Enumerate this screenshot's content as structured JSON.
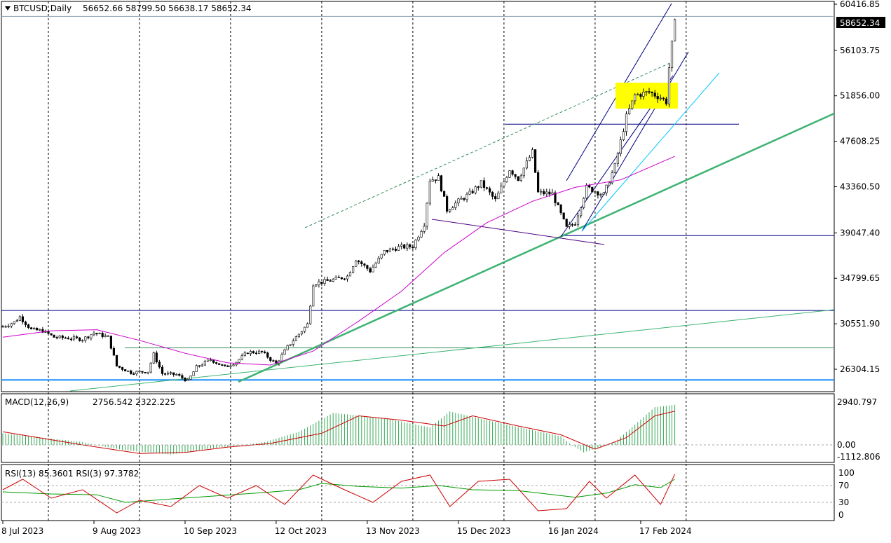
{
  "header": {
    "symbol": "BTCUSD,Daily",
    "ohlc": "56652.66 58799.50 56638.17 58652.34",
    "menu_icon": "triangle-down-icon"
  },
  "colors": {
    "bull_candle": "#ffffff",
    "bear_candle": "#000000",
    "ma": "#cc00cc",
    "trend_green": "#3cb371",
    "channel": "#000080",
    "light_trend": "#00c8ff",
    "zone": "#ffff00",
    "macd_hist": "#32a852",
    "macd_signal": "#cc0000",
    "rsi_fast": "#cc0000",
    "rsi_slow": "#009900"
  },
  "chart_data": [
    {
      "type": "candlestick",
      "title": "BTCUSD,Daily",
      "last_price": 58652.34,
      "last_price_label": "58652.34",
      "ylim": [
        24500,
        60700
      ],
      "y_ticks": [
        60416.85,
        56103.75,
        51856.0,
        47608.25,
        43360.5,
        39047.4,
        34799.65,
        30551.9,
        26304.15
      ],
      "y_tick_labels": [
        "60416.85",
        "56103.75",
        "51856.00",
        "47608.25",
        "43360.50",
        "39047.40",
        "34799.65",
        "30551.90",
        "26304.15"
      ],
      "x_tick_labels": [
        "8 Jul 2023",
        "9 Aug 2023",
        "10 Sep 2023",
        "12 Oct 2023",
        "13 Nov 2023",
        "15 Dec 2023",
        "16 Jan 2024",
        "17 Feb 2024"
      ],
      "x_tick_dates": [
        "2023-07-08",
        "2023-08-09",
        "2023-09-10",
        "2023-10-12",
        "2023-11-13",
        "2023-12-15",
        "2024-01-16",
        "2024-02-17"
      ],
      "x_range": [
        "2023-07-08",
        "2024-04-24"
      ],
      "vertical_grid_dates": [
        "2023-07-24",
        "2023-08-25",
        "2023-09-26",
        "2023-10-28",
        "2023-11-29",
        "2023-12-31",
        "2024-02-01",
        "2024-03-04"
      ],
      "horizontal_levels": [
        {
          "price": 59280,
          "color": "#8ca0b4"
        },
        {
          "price": 31800,
          "color": "#00008b"
        },
        {
          "price": 28300,
          "color": "#2e8b57"
        },
        {
          "price": 25300,
          "color": "#1e90ff"
        },
        {
          "price": 38800,
          "color": "#000080"
        },
        {
          "price": 49200,
          "color": "#000080"
        }
      ],
      "price_path": [
        [
          "2023-07-08",
          30300
        ],
        [
          "2023-07-12",
          30700
        ],
        [
          "2023-07-14",
          31200
        ],
        [
          "2023-07-18",
          30000
        ],
        [
          "2023-07-22",
          29900
        ],
        [
          "2023-07-26",
          29300
        ],
        [
          "2023-08-01",
          29200
        ],
        [
          "2023-08-05",
          29100
        ],
        [
          "2023-08-09",
          29700
        ],
        [
          "2023-08-14",
          29300
        ],
        [
          "2023-08-17",
          26600
        ],
        [
          "2023-08-22",
          26000
        ],
        [
          "2023-08-28",
          26100
        ],
        [
          "2023-08-30",
          27700
        ],
        [
          "2023-09-02",
          25900
        ],
        [
          "2023-09-07",
          25800
        ],
        [
          "2023-09-11",
          25200
        ],
        [
          "2023-09-14",
          26500
        ],
        [
          "2023-09-19",
          27200
        ],
        [
          "2023-09-24",
          26500
        ],
        [
          "2023-09-28",
          27000
        ],
        [
          "2023-10-02",
          27900
        ],
        [
          "2023-10-07",
          27900
        ],
        [
          "2023-10-12",
          26800
        ],
        [
          "2023-10-16",
          28400
        ],
        [
          "2023-10-20",
          29600
        ],
        [
          "2023-10-23",
          30500
        ],
        [
          "2023-10-25",
          34300
        ],
        [
          "2023-10-31",
          34600
        ],
        [
          "2023-11-06",
          35000
        ],
        [
          "2023-11-09",
          36600
        ],
        [
          "2023-11-14",
          35500
        ],
        [
          "2023-11-19",
          37300
        ],
        [
          "2023-11-24",
          37700
        ],
        [
          "2023-11-29",
          37800
        ],
        [
          "2023-12-03",
          39900
        ],
        [
          "2023-12-05",
          44000
        ],
        [
          "2023-12-08",
          44200
        ],
        [
          "2023-12-11",
          41200
        ],
        [
          "2023-12-15",
          42000
        ],
        [
          "2023-12-19",
          42700
        ],
        [
          "2023-12-23",
          43700
        ],
        [
          "2023-12-28",
          42100
        ],
        [
          "2024-01-02",
          45000
        ],
        [
          "2024-01-05",
          44100
        ],
        [
          "2024-01-10",
          46600
        ],
        [
          "2024-01-12",
          42800
        ],
        [
          "2024-01-17",
          42700
        ],
        [
          "2024-01-22",
          39500
        ],
        [
          "2024-01-25",
          40000
        ],
        [
          "2024-01-29",
          43300
        ],
        [
          "2024-02-04",
          42600
        ],
        [
          "2024-02-08",
          45300
        ],
        [
          "2024-02-12",
          49900
        ],
        [
          "2024-02-15",
          51900
        ],
        [
          "2024-02-20",
          52200
        ],
        [
          "2024-02-24",
          51700
        ],
        [
          "2024-02-26",
          51300
        ],
        [
          "2024-02-27",
          54500
        ],
        [
          "2024-02-28",
          56700
        ],
        [
          "2024-02-29",
          58652
        ]
      ],
      "ma_path": [
        [
          "2023-07-08",
          29300
        ],
        [
          "2023-07-25",
          29900
        ],
        [
          "2023-08-10",
          30000
        ],
        [
          "2023-08-25",
          29000
        ],
        [
          "2023-09-10",
          27800
        ],
        [
          "2023-09-25",
          26900
        ],
        [
          "2023-10-10",
          26700
        ],
        [
          "2023-10-25",
          28000
        ],
        [
          "2023-11-10",
          30800
        ],
        [
          "2023-11-25",
          33600
        ],
        [
          "2023-12-10",
          37200
        ],
        [
          "2023-12-25",
          40000
        ],
        [
          "2024-01-10",
          42000
        ],
        [
          "2024-01-25",
          43300
        ],
        [
          "2024-02-10",
          44000
        ],
        [
          "2024-02-29",
          46200
        ]
      ]
    },
    {
      "type": "bar",
      "title": "MACD(12,26,9)",
      "values_label": "2756.542 2322.225",
      "ylim": [
        -1250,
        3100
      ],
      "y_tick_labels": [
        "2940.797",
        "0.00",
        "-1112.806"
      ],
      "y_ticks": [
        2940.797,
        0,
        -1112.806
      ],
      "histogram_path": [
        [
          "2023-07-08",
          800
        ],
        [
          "2023-08-05",
          200
        ],
        [
          "2023-08-20",
          -500
        ],
        [
          "2023-09-05",
          -900
        ],
        [
          "2023-09-20",
          -300
        ],
        [
          "2023-10-08",
          200
        ],
        [
          "2023-10-20",
          900
        ],
        [
          "2023-11-01",
          2200
        ],
        [
          "2023-11-20",
          1800
        ],
        [
          "2023-12-05",
          1200
        ],
        [
          "2023-12-12",
          2300
        ],
        [
          "2023-12-25",
          1700
        ],
        [
          "2024-01-08",
          1100
        ],
        [
          "2024-01-20",
          600
        ],
        [
          "2024-01-28",
          -700
        ],
        [
          "2024-02-08",
          200
        ],
        [
          "2024-02-15",
          1400
        ],
        [
          "2024-02-22",
          2600
        ],
        [
          "2024-02-29",
          2756
        ]
      ],
      "signal_path": [
        [
          "2023-07-08",
          900
        ],
        [
          "2023-08-05",
          0
        ],
        [
          "2023-08-25",
          -800
        ],
        [
          "2023-09-10",
          -700
        ],
        [
          "2023-09-25",
          -200
        ],
        [
          "2023-10-10",
          100
        ],
        [
          "2023-10-28",
          800
        ],
        [
          "2023-11-10",
          2000
        ],
        [
          "2023-11-25",
          1700
        ],
        [
          "2023-12-10",
          1300
        ],
        [
          "2023-12-20",
          2000
        ],
        [
          "2024-01-05",
          1300
        ],
        [
          "2024-01-20",
          700
        ],
        [
          "2024-02-01",
          -400
        ],
        [
          "2024-02-12",
          500
        ],
        [
          "2024-02-22",
          2000
        ],
        [
          "2024-02-29",
          2322
        ]
      ]
    },
    {
      "type": "line",
      "title": "RSI(13) 85.3601  RSI(3) 97.3782",
      "ylim": [
        0,
        100
      ],
      "y_ticks": [
        100,
        70,
        30,
        0
      ],
      "y_tick_labels": [
        "100",
        "70",
        "30",
        "0"
      ],
      "series": [
        {
          "name": "RSI(13)",
          "color": "#009900",
          "values": [
            [
              "2023-07-08",
              55
            ],
            [
              "2023-07-25",
              50
            ],
            [
              "2023-08-10",
              48
            ],
            [
              "2023-08-20",
              30
            ],
            [
              "2023-09-05",
              38
            ],
            [
              "2023-09-20",
              45
            ],
            [
              "2023-10-05",
              52
            ],
            [
              "2023-10-20",
              60
            ],
            [
              "2023-10-28",
              75
            ],
            [
              "2023-11-10",
              68
            ],
            [
              "2023-11-25",
              64
            ],
            [
              "2023-12-08",
              70
            ],
            [
              "2023-12-20",
              60
            ],
            [
              "2024-01-05",
              58
            ],
            [
              "2024-01-15",
              50
            ],
            [
              "2024-01-25",
              42
            ],
            [
              "2024-02-05",
              52
            ],
            [
              "2024-02-15",
              72
            ],
            [
              "2024-02-24",
              65
            ],
            [
              "2024-02-29",
              85
            ]
          ]
        },
        {
          "name": "RSI(3)",
          "color": "#cc0000",
          "values": [
            [
              "2023-07-08",
              60
            ],
            [
              "2023-07-15",
              85
            ],
            [
              "2023-07-25",
              40
            ],
            [
              "2023-08-05",
              60
            ],
            [
              "2023-08-17",
              5
            ],
            [
              "2023-08-25",
              35
            ],
            [
              "2023-09-05",
              20
            ],
            [
              "2023-09-15",
              70
            ],
            [
              "2023-09-25",
              40
            ],
            [
              "2023-10-05",
              70
            ],
            [
              "2023-10-15",
              25
            ],
            [
              "2023-10-25",
              95
            ],
            [
              "2023-11-05",
              60
            ],
            [
              "2023-11-15",
              30
            ],
            [
              "2023-11-25",
              80
            ],
            [
              "2023-12-05",
              95
            ],
            [
              "2023-12-12",
              20
            ],
            [
              "2023-12-22",
              80
            ],
            [
              "2024-01-02",
              85
            ],
            [
              "2024-01-12",
              10
            ],
            [
              "2024-01-22",
              15
            ],
            [
              "2024-01-30",
              80
            ],
            [
              "2024-02-05",
              40
            ],
            [
              "2024-02-15",
              95
            ],
            [
              "2024-02-24",
              25
            ],
            [
              "2024-02-29",
              97
            ]
          ]
        }
      ]
    }
  ]
}
